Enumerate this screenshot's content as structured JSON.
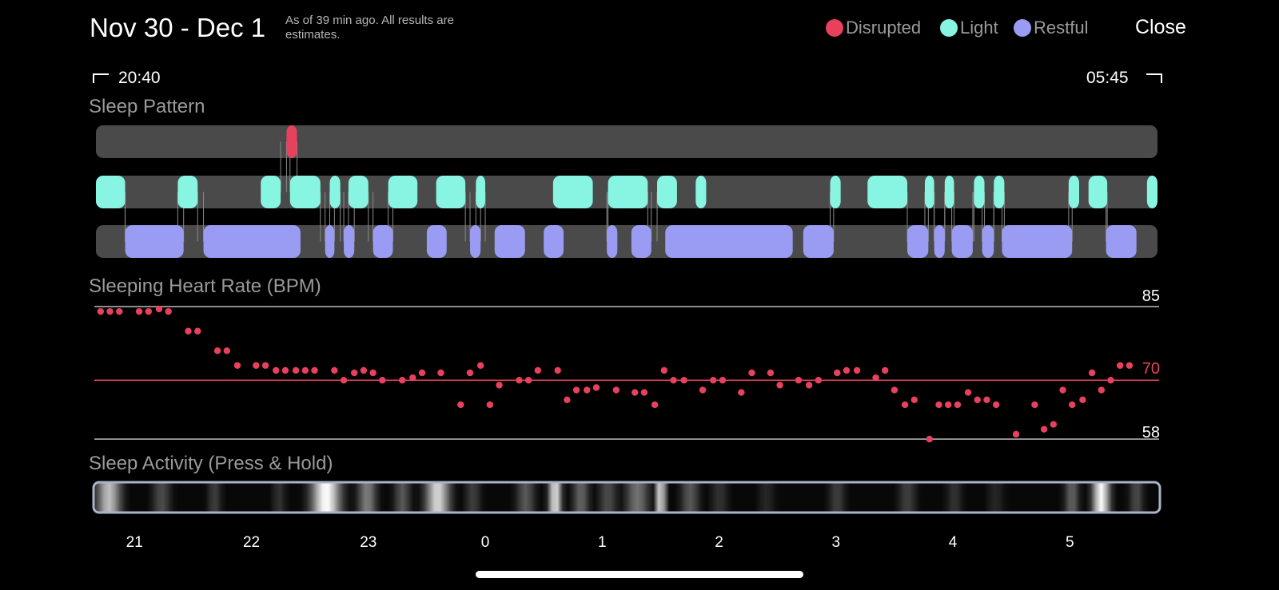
{
  "header": {
    "title": "Nov 30 - Dec 1",
    "note": "As of 39 min ago. All results are estimates.",
    "close_label": "Close"
  },
  "legend": [
    {
      "label": "Disrupted",
      "color": "#e8415e"
    },
    {
      "label": "Light",
      "color": "#87f5e2"
    },
    {
      "label": "Restful",
      "color": "#9a9cf3"
    }
  ],
  "time_range": {
    "start": "20:40",
    "end": "05:45"
  },
  "sections": {
    "sleep_pattern": "Sleep Pattern",
    "heart_rate": "Sleeping Heart Rate (BPM)",
    "activity": "Sleep Activity (Press & Hold)"
  },
  "chart_data": [
    {
      "type": "timeline",
      "title": "Sleep Pattern",
      "x_unit": "hours after midnight",
      "xlim": [
        -3.33,
        5.75
      ],
      "lanes": [
        "Disrupted",
        "Light",
        "Restful"
      ],
      "segments": {
        "Disrupted": [
          [
            -1.7,
            -1.61
          ]
        ],
        "Light": [
          [
            -3.33,
            -3.08
          ],
          [
            -2.63,
            -2.46
          ],
          [
            -1.92,
            -1.75
          ],
          [
            -1.67,
            -1.41
          ],
          [
            -1.33,
            -1.24
          ],
          [
            -1.17,
            -1.0
          ],
          [
            -0.83,
            -0.58
          ],
          [
            -0.42,
            -0.17
          ],
          [
            -0.08,
            0.0
          ],
          [
            0.58,
            0.92
          ],
          [
            1.05,
            1.39
          ],
          [
            1.47,
            1.64
          ],
          [
            1.8,
            1.89
          ],
          [
            2.95,
            3.04
          ],
          [
            3.27,
            3.61
          ],
          [
            3.76,
            3.84
          ],
          [
            3.93,
            4.01
          ],
          [
            4.18,
            4.27
          ],
          [
            4.35,
            4.44
          ],
          [
            4.99,
            5.08
          ],
          [
            5.16,
            5.32
          ],
          [
            5.66,
            5.75
          ]
        ],
        "Restful": [
          [
            -3.08,
            -2.58
          ],
          [
            -2.41,
            -1.58
          ],
          [
            -1.37,
            -1.29
          ],
          [
            -1.21,
            -1.12
          ],
          [
            -0.96,
            -0.79
          ],
          [
            -0.5,
            -0.33
          ],
          [
            -0.13,
            -0.04
          ],
          [
            0.08,
            0.34
          ],
          [
            0.5,
            0.67
          ],
          [
            1.04,
            1.13
          ],
          [
            1.25,
            1.42
          ],
          [
            1.54,
            2.63
          ],
          [
            2.72,
            2.98
          ],
          [
            3.61,
            3.79
          ],
          [
            3.84,
            3.93
          ],
          [
            3.99,
            4.17
          ],
          [
            4.25,
            4.35
          ],
          [
            4.42,
            5.02
          ],
          [
            5.31,
            5.57
          ]
        ]
      }
    },
    {
      "type": "scatter",
      "title": "Sleeping Heart Rate (BPM)",
      "color": "#e8415e",
      "reference_lines": {
        "max": 85,
        "avg": 70,
        "min": 58
      },
      "ylim": [
        58,
        85
      ],
      "x_unit": "hours after midnight",
      "xlim": [
        -3.33,
        5.75
      ],
      "points": [
        [
          -3.29,
          84
        ],
        [
          -3.21,
          84
        ],
        [
          -3.13,
          84
        ],
        [
          -2.96,
          84
        ],
        [
          -2.88,
          84
        ],
        [
          -2.79,
          84.5
        ],
        [
          -2.71,
          84
        ],
        [
          -2.54,
          80
        ],
        [
          -2.46,
          80
        ],
        [
          -2.29,
          76
        ],
        [
          -2.21,
          76
        ],
        [
          -2.12,
          73
        ],
        [
          -1.96,
          73
        ],
        [
          -1.88,
          73
        ],
        [
          -1.79,
          72
        ],
        [
          -1.71,
          72
        ],
        [
          -1.62,
          72
        ],
        [
          -1.54,
          72
        ],
        [
          -1.46,
          72
        ],
        [
          -1.29,
          72
        ],
        [
          -1.21,
          70
        ],
        [
          -1.12,
          71.5
        ],
        [
          -1.04,
          72
        ],
        [
          -0.96,
          71.5
        ],
        [
          -0.88,
          70
        ],
        [
          -0.71,
          70
        ],
        [
          -0.62,
          70.5
        ],
        [
          -0.54,
          71.5
        ],
        [
          -0.38,
          71.5
        ],
        [
          -0.21,
          65
        ],
        [
          -0.13,
          71.5
        ],
        [
          -0.04,
          73
        ],
        [
          0.04,
          65
        ],
        [
          0.12,
          69
        ],
        [
          0.29,
          70
        ],
        [
          0.37,
          70
        ],
        [
          0.45,
          72
        ],
        [
          0.62,
          72
        ],
        [
          0.7,
          66
        ],
        [
          0.78,
          68
        ],
        [
          0.87,
          68
        ],
        [
          0.95,
          68.5
        ],
        [
          1.12,
          68
        ],
        [
          1.28,
          67.5
        ],
        [
          1.36,
          67.5
        ],
        [
          1.45,
          65
        ],
        [
          1.53,
          72
        ],
        [
          1.61,
          70
        ],
        [
          1.7,
          70
        ],
        [
          1.86,
          68
        ],
        [
          1.95,
          70
        ],
        [
          2.03,
          70
        ],
        [
          2.19,
          67.5
        ],
        [
          2.28,
          71.5
        ],
        [
          2.44,
          71.5
        ],
        [
          2.52,
          69
        ],
        [
          2.68,
          70
        ],
        [
          2.77,
          69
        ],
        [
          2.85,
          70
        ],
        [
          3.01,
          71.5
        ],
        [
          3.09,
          72
        ],
        [
          3.18,
          72
        ],
        [
          3.34,
          70.5
        ],
        [
          3.42,
          72
        ],
        [
          3.5,
          68
        ],
        [
          3.59,
          65
        ],
        [
          3.67,
          66
        ],
        [
          3.8,
          58
        ],
        [
          3.88,
          65
        ],
        [
          3.96,
          65
        ],
        [
          4.04,
          65
        ],
        [
          4.13,
          67.5
        ],
        [
          4.21,
          66
        ],
        [
          4.29,
          66
        ],
        [
          4.37,
          65
        ],
        [
          4.54,
          59
        ],
        [
          4.7,
          65
        ],
        [
          4.78,
          60
        ],
        [
          4.86,
          61
        ],
        [
          4.94,
          68
        ],
        [
          5.02,
          65
        ],
        [
          5.11,
          66
        ],
        [
          5.19,
          71.5
        ],
        [
          5.27,
          68
        ],
        [
          5.35,
          70
        ],
        [
          5.43,
          73
        ],
        [
          5.51,
          73
        ]
      ]
    },
    {
      "type": "heatmap",
      "title": "Sleep Activity (Press & Hold)",
      "x_unit": "hours after midnight",
      "xlim": [
        -3.33,
        5.75
      ],
      "x_ticks": [
        "21",
        "22",
        "23",
        "0",
        "1",
        "2",
        "3",
        "4",
        "5"
      ],
      "activity_peaks": [
        [
          -3.2,
          0.75,
          0.1
        ],
        [
          -2.75,
          0.3,
          0.08
        ],
        [
          -2.3,
          0.25,
          0.06
        ],
        [
          -1.75,
          0.2,
          0.06
        ],
        [
          -1.35,
          1.0,
          0.12
        ],
        [
          -1.0,
          0.5,
          0.08
        ],
        [
          -0.7,
          0.35,
          0.07
        ],
        [
          -0.4,
          0.85,
          0.1
        ],
        [
          -0.1,
          0.25,
          0.07
        ],
        [
          0.35,
          0.35,
          0.08
        ],
        [
          0.6,
          0.95,
          0.05
        ],
        [
          0.82,
          0.4,
          0.07
        ],
        [
          1.05,
          0.3,
          0.08
        ],
        [
          1.3,
          0.45,
          0.1
        ],
        [
          1.5,
          0.95,
          0.04
        ],
        [
          1.75,
          0.35,
          0.08
        ],
        [
          2.0,
          0.2,
          0.08
        ],
        [
          2.4,
          0.15,
          0.08
        ],
        [
          3.0,
          0.25,
          0.07
        ],
        [
          3.6,
          0.25,
          0.08
        ],
        [
          4.0,
          0.2,
          0.07
        ],
        [
          4.35,
          0.15,
          0.08
        ],
        [
          5.0,
          0.4,
          0.06
        ],
        [
          5.25,
          1.0,
          0.07
        ],
        [
          5.55,
          0.3,
          0.06
        ]
      ]
    }
  ]
}
